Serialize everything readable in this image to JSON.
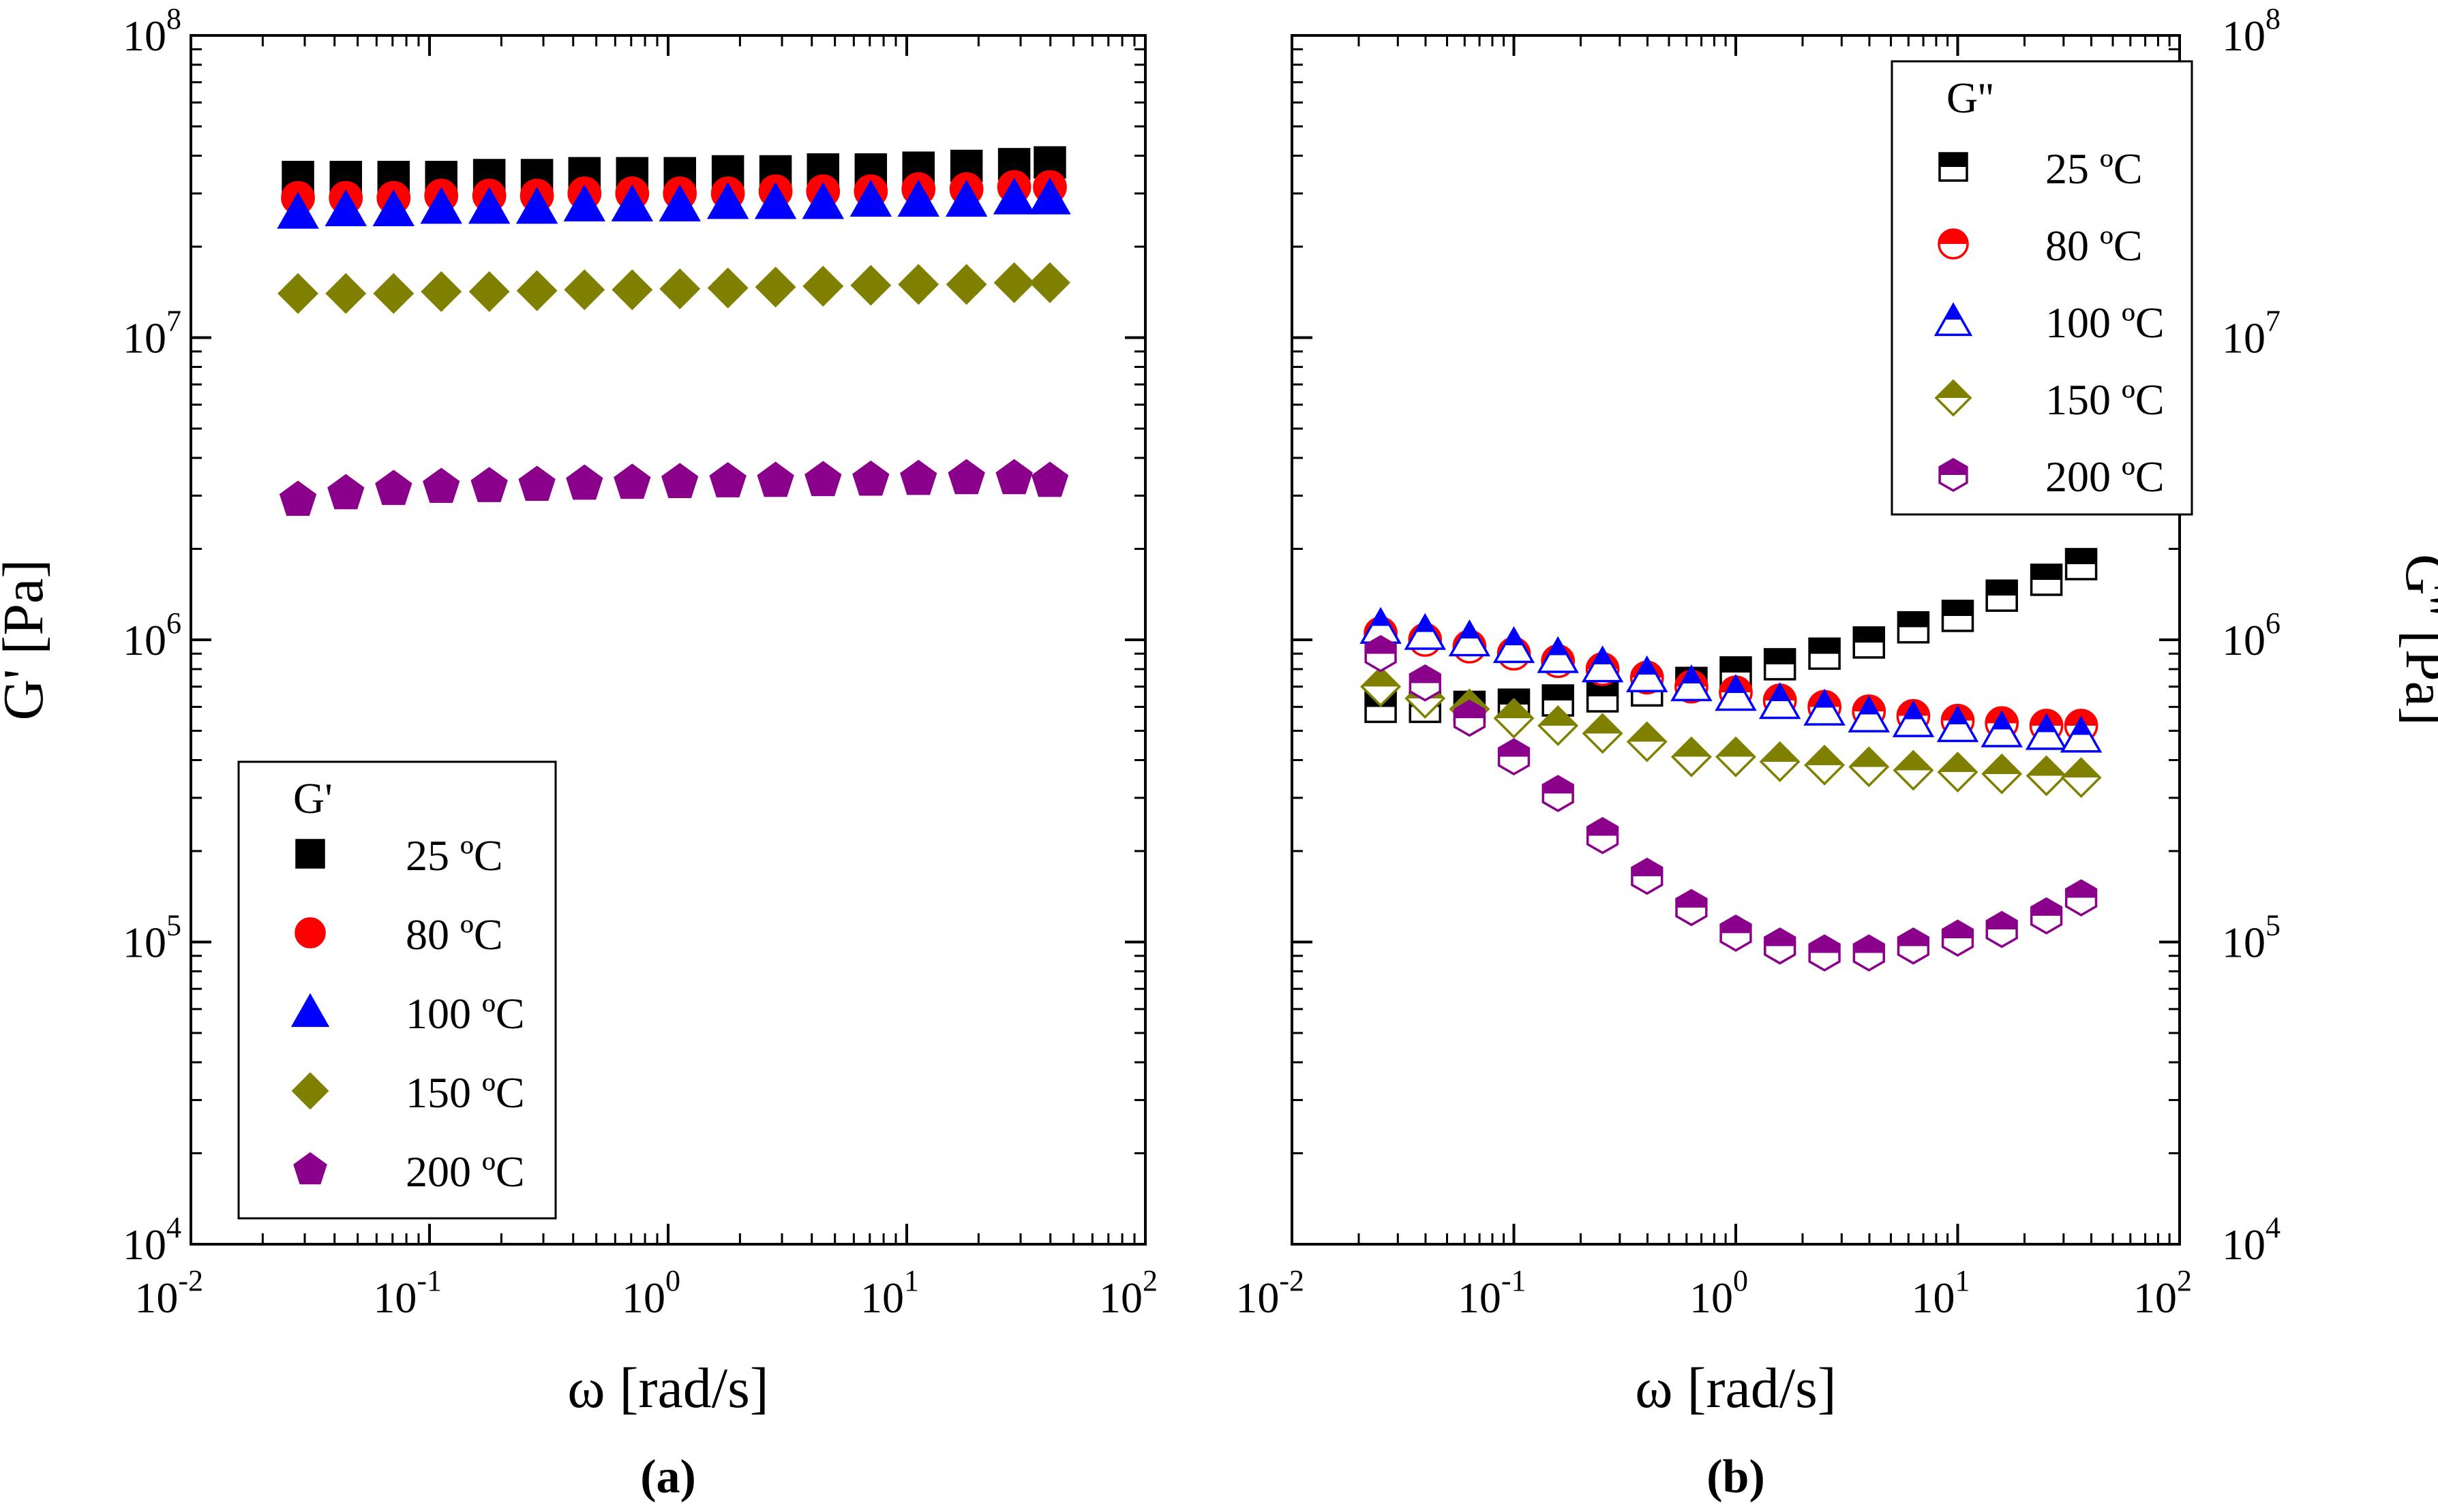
{
  "chart_data": [
    {
      "panel_label": "(a)",
      "type": "scatter",
      "scale": "log-log",
      "xlabel": "ω [rad/s]",
      "ylabel": "G' [Pa]",
      "ylabel_side": "left",
      "xlim": [
        0.01,
        100
      ],
      "ylim": [
        10000,
        100000000
      ],
      "x_ticks": [
        {
          "base": "10",
          "exp": "-2"
        },
        {
          "base": "10",
          "exp": "-1"
        },
        {
          "base": "10",
          "exp": "0"
        },
        {
          "base": "10",
          "exp": "1"
        },
        {
          "base": "10",
          "exp": "2"
        }
      ],
      "y_ticks": [
        {
          "base": "10",
          "exp": "4"
        },
        {
          "base": "10",
          "exp": "5"
        },
        {
          "base": "10",
          "exp": "6"
        },
        {
          "base": "10",
          "exp": "7"
        },
        {
          "base": "10",
          "exp": "8"
        }
      ],
      "legend": {
        "title": "G'",
        "position": "bottom-left"
      },
      "x": [
        0.0281,
        0.0446,
        0.0707,
        0.112,
        0.178,
        0.282,
        0.446,
        0.707,
        1.12,
        1.78,
        2.82,
        4.46,
        7.07,
        11.2,
        17.8,
        28.2,
        39.8
      ],
      "series": [
        {
          "name": "25 ºC",
          "marker": "square",
          "fill": "full",
          "color": "#000000",
          "values": [
            34000000.0,
            34000000.0,
            34000000.0,
            34000000.0,
            34500000.0,
            34500000.0,
            35000000.0,
            35000000.0,
            35000000.0,
            35500000.0,
            35500000.0,
            36000000.0,
            36000000.0,
            36500000.0,
            37000000.0,
            37500000.0,
            38000000.0
          ]
        },
        {
          "name": "80 ºC",
          "marker": "circle",
          "fill": "full",
          "color": "#ff0000",
          "values": [
            29000000.0,
            29000000.0,
            29000000.0,
            29500000.0,
            29500000.0,
            29500000.0,
            30000000.0,
            30000000.0,
            30000000.0,
            30000000.0,
            30500000.0,
            30500000.0,
            30500000.0,
            31000000.0,
            31000000.0,
            31500000.0,
            31500000.0
          ]
        },
        {
          "name": "100 ºC",
          "marker": "triangle",
          "fill": "full",
          "color": "#0000ff",
          "values": [
            26000000.0,
            26500000.0,
            26500000.0,
            27000000.0,
            27000000.0,
            27000000.0,
            27500000.0,
            27500000.0,
            27500000.0,
            28000000.0,
            28000000.0,
            28000000.0,
            28500000.0,
            28500000.0,
            28500000.0,
            29000000.0,
            29000000.0
          ]
        },
        {
          "name": "150 ºC",
          "marker": "diamond",
          "fill": "full",
          "color": "#808000",
          "values": [
            14000000.0,
            14000000.0,
            14000000.0,
            14200000.0,
            14200000.0,
            14300000.0,
            14400000.0,
            14400000.0,
            14500000.0,
            14600000.0,
            14700000.0,
            14800000.0,
            14900000.0,
            15000000.0,
            15000000.0,
            15200000.0,
            15200000.0
          ]
        },
        {
          "name": "200 ºC",
          "marker": "pentagon",
          "fill": "full",
          "color": "#8b008b",
          "values": [
            2900000.0,
            3050000.0,
            3150000.0,
            3200000.0,
            3220000.0,
            3250000.0,
            3280000.0,
            3300000.0,
            3320000.0,
            3340000.0,
            3350000.0,
            3370000.0,
            3380000.0,
            3400000.0,
            3420000.0,
            3420000.0,
            3350000.0
          ]
        }
      ]
    },
    {
      "panel_label": "(b)",
      "type": "scatter",
      "scale": "log-log",
      "xlabel": "ω [rad/s]",
      "ylabel": "G'' [Pa]",
      "ylabel_side": "right",
      "xlim": [
        0.01,
        100
      ],
      "ylim": [
        10000,
        100000000
      ],
      "x_ticks": [
        {
          "base": "10",
          "exp": "-2"
        },
        {
          "base": "10",
          "exp": "-1"
        },
        {
          "base": "10",
          "exp": "0"
        },
        {
          "base": "10",
          "exp": "1"
        },
        {
          "base": "10",
          "exp": "2"
        }
      ],
      "y_ticks": [
        {
          "base": "10",
          "exp": "4"
        },
        {
          "base": "10",
          "exp": "5"
        },
        {
          "base": "10",
          "exp": "6"
        },
        {
          "base": "10",
          "exp": "7"
        },
        {
          "base": "10",
          "exp": "8"
        }
      ],
      "legend": {
        "title": "G''",
        "position": "top-right"
      },
      "x": [
        0.0251,
        0.0398,
        0.0631,
        0.1,
        0.158,
        0.251,
        0.398,
        0.631,
        1.0,
        1.58,
        2.51,
        3.98,
        6.31,
        10,
        15.8,
        25.1,
        36
      ],
      "series": [
        {
          "name": "25 ºC",
          "marker": "square",
          "fill": "top-half",
          "color": "#000000",
          "values": [
            600000.0,
            600000.0,
            600000.0,
            610000.0,
            630000.0,
            650000.0,
            680000.0,
            720000.0,
            780000.0,
            830000.0,
            900000.0,
            980000.0,
            1100000.0,
            1200000.0,
            1400000.0,
            1580000.0,
            1780000.0
          ]
        },
        {
          "name": "80 ºC",
          "marker": "circle",
          "fill": "top-half",
          "color": "#ff0000",
          "values": [
            1050000.0,
            1000000.0,
            950000.0,
            900000.0,
            850000.0,
            800000.0,
            750000.0,
            700000.0,
            670000.0,
            630000.0,
            600000.0,
            580000.0,
            560000.0,
            540000.0,
            530000.0,
            520000.0,
            520000.0
          ]
        },
        {
          "name": "100 ºC",
          "marker": "triangle",
          "fill": "top-half",
          "color": "#0000ff",
          "values": [
            1100000.0,
            1050000.0,
            1000000.0,
            950000.0,
            880000.0,
            820000.0,
            760000.0,
            710000.0,
            660000.0,
            620000.0,
            590000.0,
            560000.0,
            540000.0,
            520000.0,
            500000.0,
            490000.0,
            480000.0
          ]
        },
        {
          "name": "150 ºC",
          "marker": "diamond",
          "fill": "top-half",
          "color": "#808000",
          "values": [
            700000.0,
            640000.0,
            590000.0,
            550000.0,
            520000.0,
            490000.0,
            460000.0,
            410000.0,
            410000.0,
            395000.0,
            385000.0,
            380000.0,
            370000.0,
            365000.0,
            360000.0,
            355000.0,
            350000.0
          ]
        },
        {
          "name": "200 ºC",
          "marker": "hexagon",
          "fill": "top-half",
          "color": "#8b008b",
          "values": [
            900000.0,
            720000.0,
            550000.0,
            410000.0,
            310000.0,
            225000.0,
            165000.0,
            130000.0,
            107000.0,
            97000.0,
            92000.0,
            92000.0,
            97000.0,
            103000.0,
            110000.0,
            122000.0,
            140000.0
          ]
        }
      ]
    }
  ]
}
